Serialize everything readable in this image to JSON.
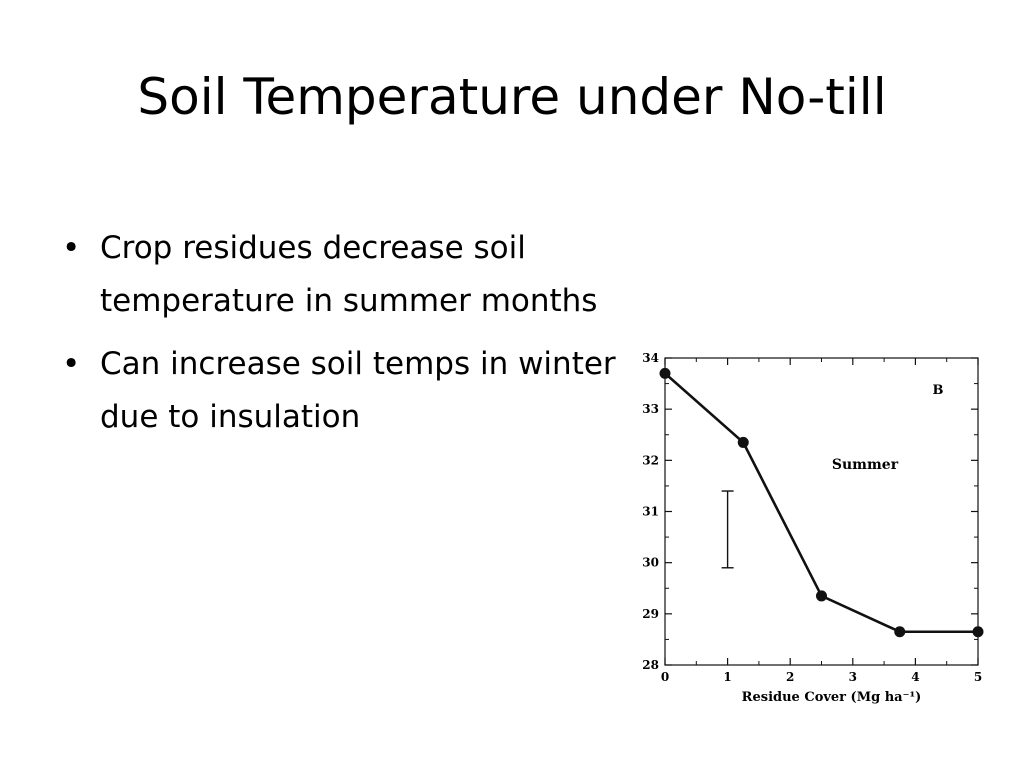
{
  "slide": {
    "title": "Soil Temperature under No-till",
    "bullets": [
      {
        "text": "Crop residues decrease soil temperature in summer months"
      },
      {
        "text": "Can increase soil temps in winter due to insulation"
      }
    ]
  },
  "chart_data": {
    "type": "line",
    "panel_label": "B",
    "annotation": "Summer",
    "xlabel": "Residue Cover (Mg ha⁻¹)",
    "ylabel": "",
    "xlim": [
      0,
      5
    ],
    "ylim": [
      28,
      34
    ],
    "x_ticks": [
      0,
      1,
      2,
      3,
      4,
      5
    ],
    "y_ticks": [
      28,
      29,
      30,
      31,
      32,
      33,
      34
    ],
    "series": [
      {
        "x": [
          0,
          1.25,
          2.5,
          3.75,
          5
        ],
        "values": [
          33.7,
          32.35,
          29.35,
          28.65,
          28.65
        ]
      }
    ],
    "error_bar": {
      "x": 1,
      "low": 29.9,
      "high": 31.4
    },
    "grid": false,
    "color": "#111111"
  }
}
